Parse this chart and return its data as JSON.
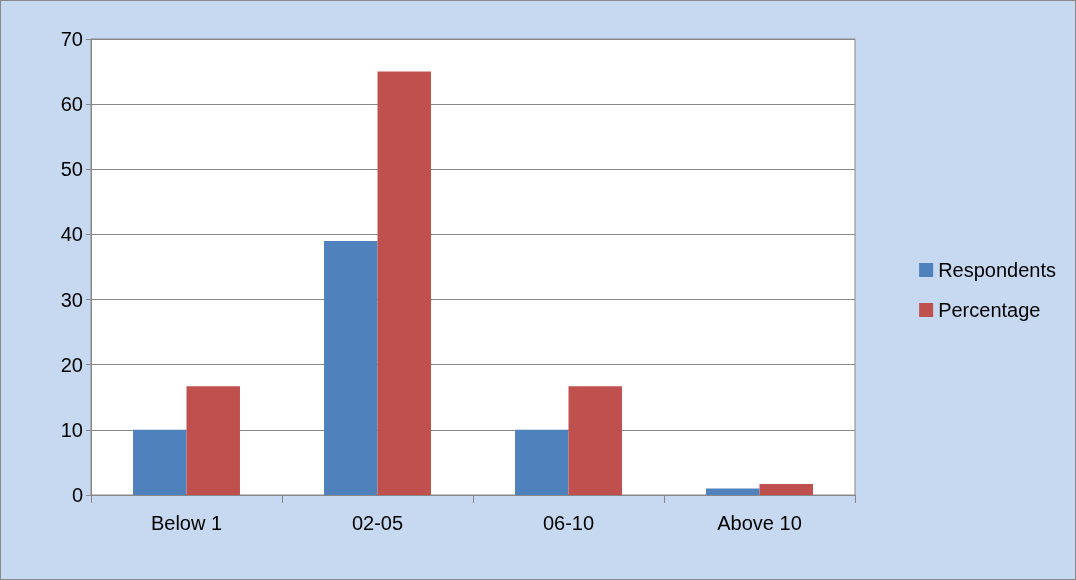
{
  "chart_data": {
    "type": "bar",
    "categories": [
      "Below 1",
      "02-05",
      "06-10",
      "Above 10"
    ],
    "series": [
      {
        "name": "Respondents",
        "color": "#4f81bd",
        "values": [
          10,
          39,
          10,
          1
        ]
      },
      {
        "name": "Percentage",
        "color": "#c0504d",
        "values": [
          16.7,
          65,
          16.7,
          1.7
        ]
      }
    ],
    "ylim": [
      0,
      70
    ],
    "yticks": [
      0,
      10,
      20,
      30,
      40,
      50,
      60,
      70
    ],
    "grid": "y",
    "legend": "right"
  }
}
